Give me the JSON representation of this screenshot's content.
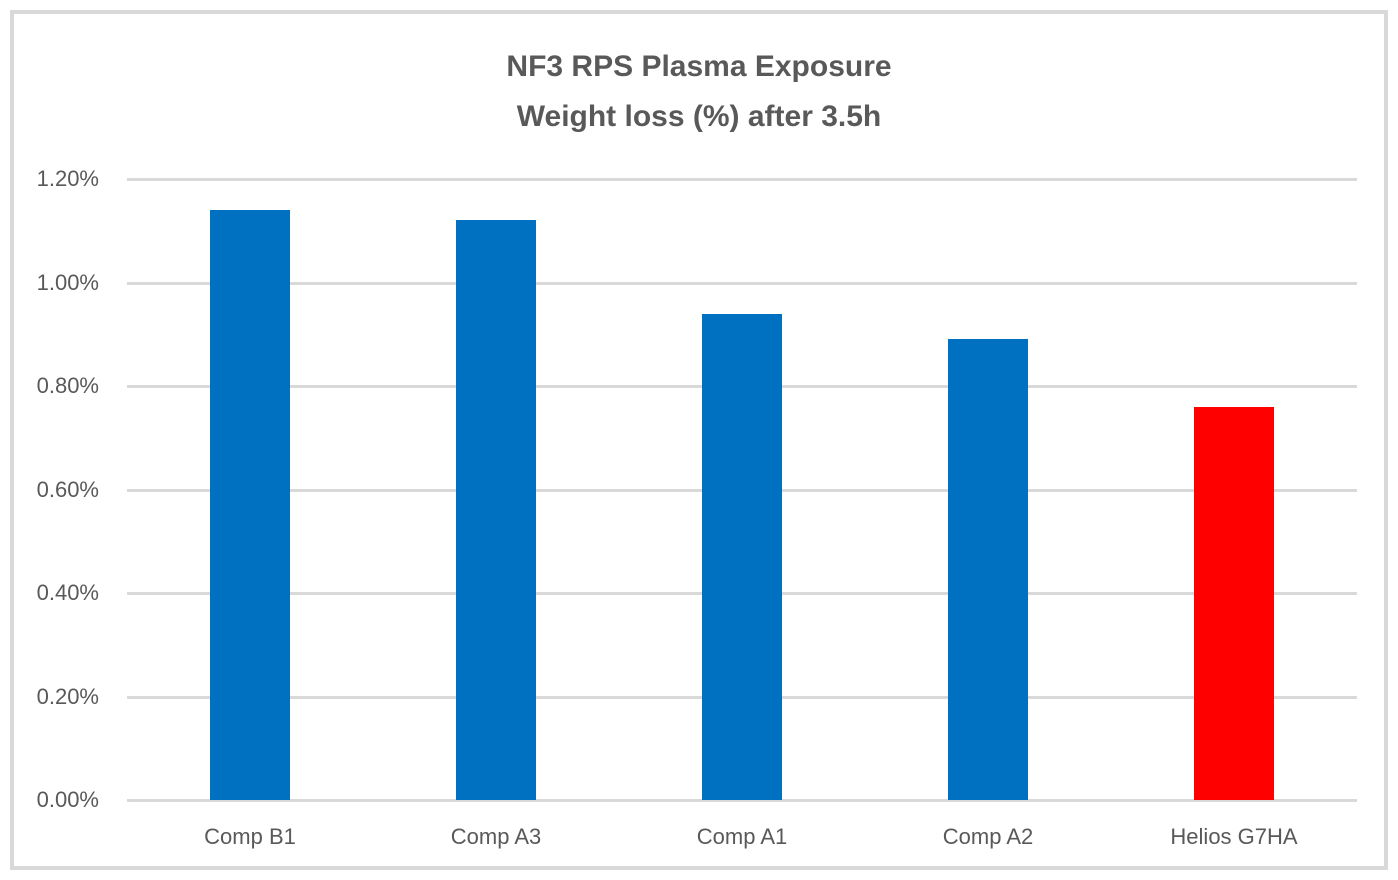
{
  "chart": {
    "title_lines": [
      "NF3 RPS Plasma Exposure",
      "Weight loss (%) after 3.5h"
    ]
  },
  "chart_data": {
    "type": "bar",
    "title": "NF3 RPS Plasma Exposure Weight loss (%) after 3.5h",
    "categories": [
      "Comp B1",
      "Comp A3",
      "Comp A1",
      "Comp A2",
      "Helios G7HA"
    ],
    "values": [
      1.14,
      1.12,
      0.94,
      0.89,
      0.76
    ],
    "value_unit": "percent",
    "bar_colors": [
      "#0070C0",
      "#0070C0",
      "#0070C0",
      "#0070C0",
      "#FF0000"
    ],
    "highlight_category": "Helios G7HA",
    "highlight_color": "#FF0000",
    "default_bar_color": "#0070C0",
    "xlabel": "",
    "ylabel": "",
    "ylim": [
      0,
      1.2
    ],
    "y_ticks": [
      "0.00%",
      "0.20%",
      "0.40%",
      "0.60%",
      "0.80%",
      "1.00%",
      "1.20%"
    ],
    "y_tick_values": [
      0,
      0.2,
      0.4,
      0.6,
      0.8,
      1.0,
      1.2
    ],
    "grid": "horizontal",
    "legend": "none",
    "gridline_color": "#D9D9D9",
    "text_color": "#595959",
    "background_color": "#FFFFFF"
  }
}
